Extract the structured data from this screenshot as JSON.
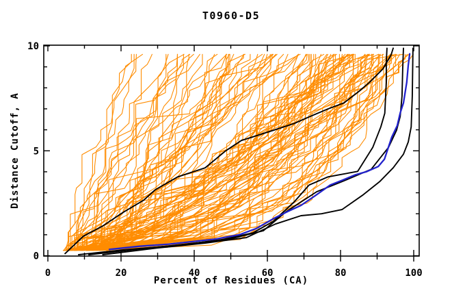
{
  "page": {
    "title": "T0960-D5"
  },
  "chart_data": {
    "type": "line",
    "title": "T0960-D5",
    "xlabel": "Percent of Residues (CA)",
    "ylabel": "Distance Cutoff, A",
    "xlim": [
      0,
      100
    ],
    "ylim": [
      0,
      10
    ],
    "x_major_ticks": [
      0,
      20,
      40,
      60,
      80,
      100
    ],
    "x_minor_step": 10,
    "y_major_ticks": [
      0,
      5,
      10
    ],
    "y_minor_step": 1,
    "grid": false,
    "legend": "none",
    "colors": {
      "ensemble": "#ff8c00",
      "reference": "#000000",
      "highlight": "#2222cc",
      "frame": "#000000",
      "background": "#ffffff"
    },
    "series": [
      {
        "name": "server-model-ensemble",
        "role": "ensemble",
        "color_key": "ensemble",
        "line_width": 1.1,
        "count": 110,
        "seed": 7,
        "start_percent_range": [
          4,
          17
        ],
        "top_percent_range": [
          21,
          100
        ],
        "cutoff_start": 0.25,
        "cutoff_end": 9.6,
        "description": "Approximately 110 thin orange model curves fanning out from ~5-17% of residues at cutoff 0.25 A up to 21-100% of residues at cutoff 9.6 A, denser toward the right side; drawn procedurally from these distribution parameters."
      },
      {
        "name": "black-reference-curve-1",
        "role": "reference",
        "color_key": "reference",
        "line_width": 1.9,
        "points": [
          [
            4.7,
            0.1
          ],
          [
            9.7,
            0.93
          ],
          [
            15,
            1.42
          ],
          [
            20.6,
            2.07
          ],
          [
            26.2,
            2.65
          ],
          [
            29.3,
            3.14
          ],
          [
            35.5,
            3.76
          ],
          [
            43,
            4.19
          ],
          [
            48.6,
            5.0
          ],
          [
            52.9,
            5.49
          ],
          [
            61.7,
            5.98
          ],
          [
            67.3,
            6.3
          ],
          [
            71.6,
            6.63
          ],
          [
            76.6,
            7.0
          ],
          [
            80.9,
            7.28
          ],
          [
            85,
            7.83
          ],
          [
            87.9,
            8.26
          ],
          [
            91.6,
            8.91
          ],
          [
            93.8,
            9.56
          ],
          [
            94.4,
            9.89
          ]
        ]
      },
      {
        "name": "black-reference-curve-2",
        "role": "reference",
        "color_key": "reference",
        "line_width": 1.9,
        "points": [
          [
            8.4,
            0.05
          ],
          [
            20.6,
            0.28
          ],
          [
            33.6,
            0.47
          ],
          [
            46.7,
            0.73
          ],
          [
            56.1,
            1.09
          ],
          [
            61.7,
            1.65
          ],
          [
            67.3,
            2.56
          ],
          [
            71.4,
            3.37
          ],
          [
            76.6,
            3.76
          ],
          [
            84.7,
            4.02
          ],
          [
            88.8,
            5.16
          ],
          [
            91,
            6.14
          ],
          [
            92.1,
            6.79
          ],
          [
            92.5,
            8.26
          ],
          [
            92.5,
            9.23
          ],
          [
            92.7,
            9.89
          ]
        ]
      },
      {
        "name": "black-reference-curve-3",
        "role": "reference",
        "color_key": "reference",
        "line_width": 1.9,
        "points": [
          [
            11.2,
            0.05
          ],
          [
            24.3,
            0.31
          ],
          [
            37.4,
            0.54
          ],
          [
            50.5,
            0.83
          ],
          [
            58.9,
            1.19
          ],
          [
            64.9,
            2.07
          ],
          [
            69.2,
            2.56
          ],
          [
            73.5,
            3.05
          ],
          [
            80.4,
            3.53
          ],
          [
            88.4,
            4.12
          ],
          [
            93.1,
            5.16
          ],
          [
            95.3,
            5.98
          ],
          [
            96.3,
            6.63
          ],
          [
            96.8,
            7.61
          ],
          [
            97.0,
            8.91
          ],
          [
            97.2,
            9.89
          ]
        ]
      },
      {
        "name": "black-reference-curve-4",
        "role": "reference",
        "color_key": "reference",
        "line_width": 1.9,
        "points": [
          [
            15,
            0.05
          ],
          [
            29.9,
            0.37
          ],
          [
            43,
            0.6
          ],
          [
            54.2,
            0.86
          ],
          [
            62.2,
            1.51
          ],
          [
            69.2,
            1.91
          ],
          [
            74.8,
            2.0
          ],
          [
            80.4,
            2.2
          ],
          [
            86,
            2.88
          ],
          [
            90.7,
            3.53
          ],
          [
            94.4,
            4.19
          ],
          [
            97.2,
            4.84
          ],
          [
            98.5,
            5.42
          ],
          [
            99.3,
            6.14
          ],
          [
            99.6,
            7.6
          ],
          [
            99.8,
            9.89
          ]
        ]
      },
      {
        "name": "blue-highlight-curve",
        "role": "highlight",
        "color_key": "highlight",
        "line_width": 2.3,
        "points": [
          [
            16.8,
            0.3
          ],
          [
            25,
            0.45
          ],
          [
            33,
            0.55
          ],
          [
            39.3,
            0.67
          ],
          [
            46,
            0.8
          ],
          [
            52.3,
            1.0
          ],
          [
            57,
            1.3
          ],
          [
            61.7,
            1.77
          ],
          [
            65.5,
            2.1
          ],
          [
            69.2,
            2.4
          ],
          [
            73,
            2.85
          ],
          [
            77.2,
            3.37
          ],
          [
            80.5,
            3.6
          ],
          [
            84.1,
            3.86
          ],
          [
            87,
            4.0
          ],
          [
            90.3,
            4.25
          ],
          [
            92,
            4.6
          ],
          [
            94,
            5.65
          ],
          [
            95.5,
            6.2
          ],
          [
            96.3,
            6.8
          ],
          [
            97.2,
            7.28
          ],
          [
            98.1,
            8.26
          ],
          [
            98.5,
            9.07
          ],
          [
            98.9,
            9.62
          ]
        ]
      }
    ]
  }
}
